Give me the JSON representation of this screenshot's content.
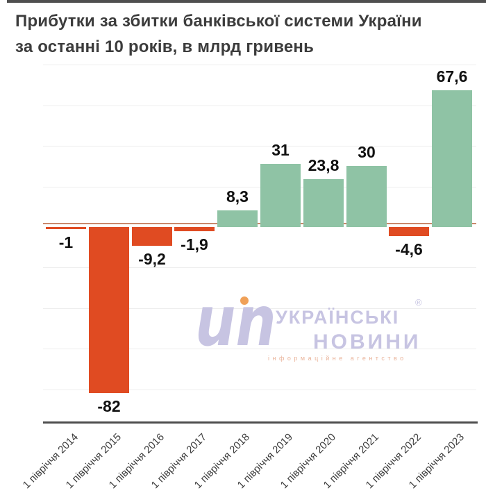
{
  "title": {
    "line1": "Прибутки за збитки банківської системи України",
    "line2": "за останні 10 років, в млрд гривень"
  },
  "chart_data": {
    "type": "bar",
    "title": "Прибутки за збитки банківської системи України за останні 10 років, в млрд гривень",
    "xlabel": "",
    "ylabel": "млрд гривень",
    "categories": [
      "1 півріччя 2014",
      "1 півріччя 2015",
      "1 півріччя 2016",
      "1 півріччя 2017",
      "1 півріччя 2018",
      "1 півріччя 2019",
      "1 півріччя 2020",
      "1 півріччя 2021",
      "1 півріччя 2022",
      "1 півріччя 2023"
    ],
    "values": [
      -1,
      -82,
      -9.2,
      -1.9,
      8.3,
      31,
      23.8,
      30,
      -4.6,
      67.6
    ],
    "value_labels": [
      "-1",
      "-82",
      "-9,2",
      "-1,9",
      "8,3",
      "31",
      "23,8",
      "30",
      "-4,6",
      "67,6"
    ],
    "ylim": [
      -90,
      80
    ],
    "gridline_values": [
      80,
      60,
      40,
      20,
      0,
      -20,
      -40,
      -60,
      -80
    ],
    "grid": "horizontal light gray, no y tick labels",
    "legend": "none",
    "x_tick_rotation": -45,
    "colors": {
      "positive": "#8fc3a5",
      "negative": "#e04b22",
      "gridline": "#ededed",
      "zero_line": "#c9886c",
      "axis_line": "#4d4d4d",
      "value_label": "#111111",
      "tick_label": "#3c3c3c",
      "title": "#3c3c3c",
      "top_strip": "#4f4f4f"
    }
  },
  "watermark": {
    "logo_text": "un",
    "registered": "®",
    "brand_line1": "УКРАЇНСЬКІ",
    "brand_line2": "НОВИНИ",
    "tagline": "інформаційне агентство",
    "colors": {
      "lavender": "#c7c4e2",
      "dot_orange": "#f0a158",
      "tagline_orange": "#eab49b"
    }
  }
}
